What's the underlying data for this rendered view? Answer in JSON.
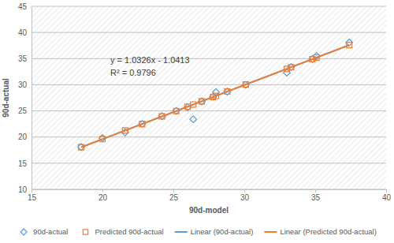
{
  "chart_data": {
    "type": "scatter",
    "x_label": "90d-model",
    "y_label": "90d-actual",
    "annotations": [
      "y = 1.0326x - 1.0413",
      "R² = 0.9796"
    ],
    "xlim": [
      15,
      40
    ],
    "xticks": [
      15,
      20,
      25,
      30,
      35,
      40
    ],
    "ylim": [
      10,
      45
    ],
    "yticks": [
      10,
      15,
      20,
      25,
      30,
      35,
      40,
      45
    ],
    "grid": true,
    "legend": "bottom",
    "series": [
      {
        "name": "90d-actual",
        "type": "scatter",
        "color": "#5b9bd5",
        "marker": "diamond",
        "x": [
          18.5,
          20,
          21.6,
          22.8,
          24.2,
          25.2,
          26,
          26.4,
          27,
          27.8,
          28,
          28.8,
          30.1,
          33,
          33.3,
          34.8,
          35.1,
          37.4
        ],
        "values": [
          18.1,
          19.8,
          20.9,
          22.5,
          24.0,
          25.0,
          25.7,
          23.4,
          26.8,
          27.7,
          28.6,
          28.7,
          30.0,
          32.3,
          33.4,
          34.9,
          35.5,
          38.1
        ]
      },
      {
        "name": "Predicted 90d-actual",
        "type": "scatter",
        "color": "#ed7d31",
        "marker": "square",
        "x": [
          18.5,
          20,
          21.6,
          22.8,
          24.2,
          25.2,
          26,
          26.4,
          27,
          27.8,
          28,
          28.8,
          30.1,
          33,
          33.3,
          34.8,
          35.1,
          37.4
        ],
        "values": [
          18.06,
          19.61,
          21.26,
          22.5,
          23.95,
          24.98,
          25.81,
          26.22,
          26.84,
          27.66,
          27.87,
          28.7,
          30.04,
          33.03,
          33.34,
          34.89,
          35.2,
          37.58
        ]
      },
      {
        "name": "Linear (90d-actual)",
        "type": "line",
        "color": "#5b9bd5",
        "line_style": "solid",
        "x": [
          18.5,
          37.4
        ],
        "values": [
          18.06,
          37.58
        ]
      },
      {
        "name": "Linear (Predicted 90d-actual)",
        "type": "line",
        "color": "#ed7d31",
        "line_style": "solid",
        "x": [
          18.5,
          37.4
        ],
        "values": [
          18.06,
          37.58
        ]
      }
    ]
  }
}
